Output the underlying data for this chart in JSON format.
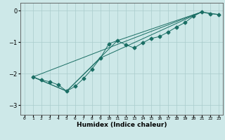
{
  "xlabel": "Humidex (Indice chaleur)",
  "ylabel": "",
  "background_color": "#cde8e8",
  "grid_color": "#aacccc",
  "line_color": "#1a6e64",
  "xlim": [
    -0.5,
    23.5
  ],
  "ylim": [
    -3.3,
    0.25
  ],
  "yticks": [
    0,
    -1,
    -2,
    -3
  ],
  "xticks": [
    0,
    1,
    2,
    3,
    4,
    5,
    6,
    7,
    8,
    9,
    10,
    11,
    12,
    13,
    14,
    15,
    16,
    17,
    18,
    19,
    20,
    21,
    22,
    23
  ],
  "line1_x": [
    1,
    2,
    3,
    4,
    5,
    6,
    7,
    8,
    9,
    10,
    11,
    12,
    13,
    14,
    15,
    16,
    17,
    18,
    19,
    20,
    21,
    22,
    23
  ],
  "line1_y": [
    -2.1,
    -2.2,
    -2.25,
    -2.35,
    -2.55,
    -2.4,
    -2.15,
    -1.85,
    -1.5,
    -1.05,
    -0.95,
    -1.08,
    -1.18,
    -1.02,
    -0.88,
    -0.82,
    -0.68,
    -0.52,
    -0.38,
    -0.18,
    -0.04,
    -0.1,
    -0.12
  ],
  "line2_x": [
    1,
    21
  ],
  "line2_y": [
    -2.1,
    -0.04
  ],
  "line3_x": [
    1,
    5,
    11,
    21,
    23
  ],
  "line3_y": [
    -2.1,
    -2.55,
    -0.95,
    -0.04,
    -0.12
  ],
  "line4_x": [
    1,
    5,
    9,
    21
  ],
  "line4_y": [
    -2.1,
    -2.55,
    -1.5,
    -0.04
  ]
}
